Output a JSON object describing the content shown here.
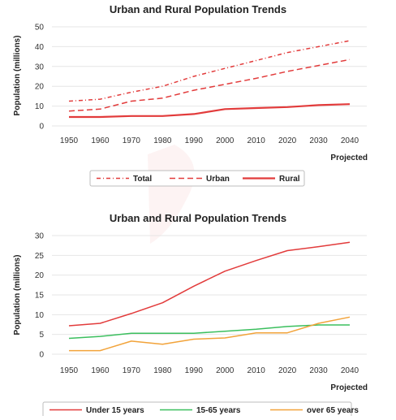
{
  "chart_data": [
    {
      "type": "line",
      "title": "Urban and Rural Population Trends",
      "xlabel": "",
      "ylabel": "Population (millions)",
      "x_note": "Projected",
      "ylim": [
        0,
        50
      ],
      "yticks": [
        0,
        10,
        20,
        30,
        40,
        50
      ],
      "x": [
        1950,
        1960,
        1970,
        1980,
        1990,
        2000,
        2010,
        2020,
        2030,
        2040
      ],
      "grid": "horizontal",
      "legend_position": "bottom",
      "series": [
        {
          "name": "Total",
          "color": "#e23b3b",
          "style": "dashdot",
          "values": [
            12.5,
            13.5,
            17,
            20,
            25,
            29,
            33,
            37,
            40,
            43
          ]
        },
        {
          "name": "Urban",
          "color": "#e23b3b",
          "style": "dashed",
          "values": [
            7.5,
            8.5,
            12.5,
            14,
            18,
            21,
            24,
            27.5,
            30.5,
            33.5
          ]
        },
        {
          "name": "Rural",
          "color": "#e23b3b",
          "style": "solid",
          "values": [
            4.5,
            4.5,
            5,
            5,
            6,
            8.5,
            9,
            9.5,
            10.5,
            11
          ]
        }
      ]
    },
    {
      "type": "line",
      "title": "Urban and Rural Population Trends",
      "xlabel": "",
      "ylabel": "Population (millions)",
      "x_note": "Projected",
      "ylim": [
        0,
        30
      ],
      "yticks": [
        0,
        5,
        10,
        15,
        20,
        25,
        30
      ],
      "x": [
        1950,
        1960,
        1970,
        1980,
        1990,
        2000,
        2010,
        2020,
        2030,
        2040
      ],
      "grid": "horizontal",
      "legend_position": "bottom",
      "series": [
        {
          "name": "Under 15 years",
          "color": "#e23b3b",
          "style": "solid",
          "values": [
            7.2,
            7.8,
            10.3,
            13,
            17.2,
            21,
            23.7,
            26.2,
            27.2,
            28.3
          ]
        },
        {
          "name": "15-65 years",
          "color": "#3bbf5e",
          "style": "solid",
          "values": [
            4,
            4.5,
            5.3,
            5.3,
            5.3,
            5.8,
            6.3,
            7,
            7.4,
            7.4
          ]
        },
        {
          "name": "over 65 years",
          "color": "#f2a33a",
          "style": "solid",
          "values": [
            0.9,
            0.9,
            3.3,
            2.5,
            3.8,
            4.1,
            5.4,
            5.4,
            7.8,
            9.4
          ]
        }
      ]
    }
  ]
}
